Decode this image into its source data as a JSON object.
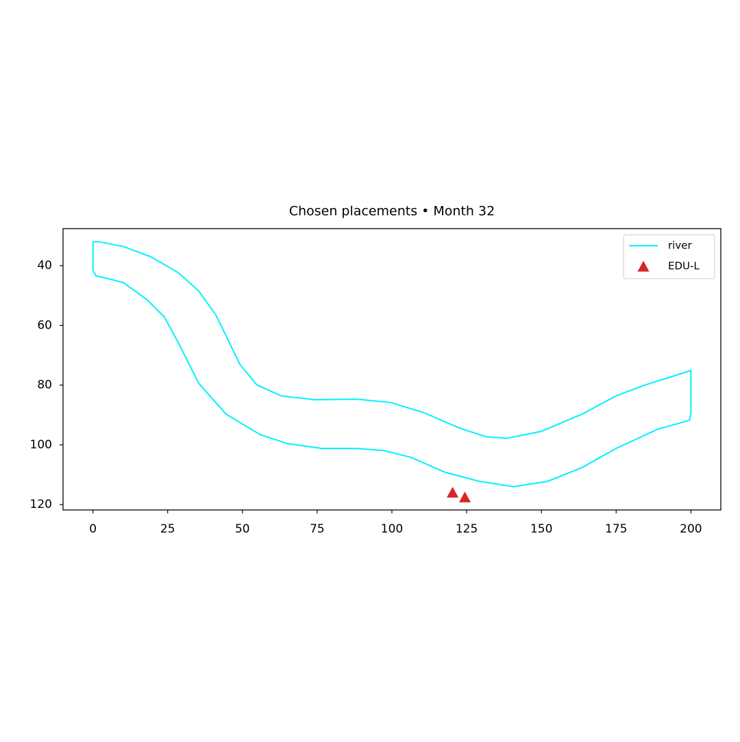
{
  "chart_data": {
    "type": "line",
    "title": "Chosen placements • Month 32",
    "xlim": [
      -10,
      210
    ],
    "ylim": [
      121.8,
      27.6
    ],
    "xticks": [
      0,
      25,
      50,
      75,
      100,
      125,
      150,
      175,
      200
    ],
    "yticks": [
      40,
      60,
      80,
      100,
      120
    ],
    "grid": false,
    "legend": "upper right",
    "series": [
      {
        "name": "river",
        "type": "line",
        "color": "#00f0ff",
        "x": [
          0,
          2,
          10.2,
          19.3,
          28.5,
          35.4,
          41.1,
          44.5,
          49.1,
          54.8,
          62.9,
          74.3,
          88,
          99.5,
          110.9,
          122.4,
          131.5,
          138.4,
          149.9,
          163.6,
          175,
          184.2,
          200,
          200,
          199.5,
          188.8,
          175,
          163.6,
          152.1,
          140.7,
          129.2,
          117.8,
          106.4,
          97.2,
          88,
          76.6,
          65.1,
          56,
          44.5,
          35.4,
          28.5,
          23.9,
          18.2,
          10.2,
          3.3,
          1,
          0,
          0
        ],
        "values": [
          32,
          32,
          33.6,
          37,
          42.3,
          48.5,
          56.5,
          63.4,
          73,
          79.9,
          83.6,
          84.9,
          84.7,
          85.8,
          89.3,
          94.3,
          97.3,
          97.8,
          95.5,
          89.7,
          83.6,
          80.1,
          75.1,
          89.3,
          91.8,
          94.8,
          101.2,
          107.6,
          112.2,
          114,
          112.2,
          109.2,
          104.2,
          101.9,
          101.2,
          101.2,
          99.6,
          96.6,
          89.7,
          79.4,
          65.7,
          57.2,
          51.5,
          45.7,
          43.9,
          43.4,
          41.6,
          32
        ]
      },
      {
        "name": "EDU-L",
        "type": "scatter",
        "marker": "^",
        "color": "#d62728",
        "x": [
          120.3,
          124.4
        ],
        "values": [
          116.1,
          117.7
        ]
      }
    ]
  }
}
